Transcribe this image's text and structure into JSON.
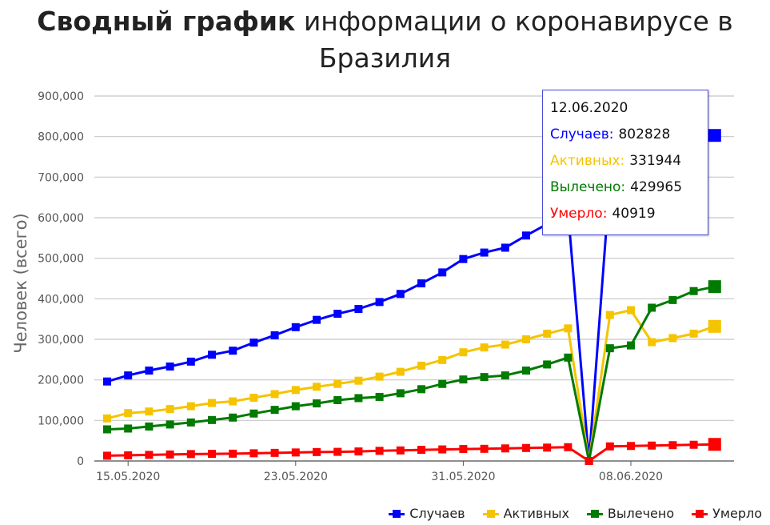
{
  "title": {
    "bold": "Сводный график",
    "rest": " информации о коронавирусе в Бразилия"
  },
  "tooltip": {
    "date": "12.06.2020",
    "rows": [
      {
        "label": "Случаев:",
        "value": "802828",
        "color": "#0000ff"
      },
      {
        "label": "Активных:",
        "value": "331944",
        "color": "#f5c400"
      },
      {
        "label": "Вылечено:",
        "value": "429965",
        "color": "#007a00"
      },
      {
        "label": "Умерло:",
        "value": "40919",
        "color": "#ff0000"
      }
    ]
  },
  "chart_data": {
    "type": "line",
    "ylabel": "Человек (всего)",
    "xlabel": "",
    "ylim": [
      0,
      900000
    ],
    "yticks": [
      "900,000",
      "800,000",
      "700,000",
      "600,000",
      "500,000",
      "400,000",
      "300,000",
      "200,000",
      "100,000",
      "0"
    ],
    "ytick_values": [
      900000,
      800000,
      700000,
      600000,
      500000,
      400000,
      300000,
      200000,
      100000,
      0
    ],
    "xticks": [
      {
        "label": "15.05.2020",
        "index": 1
      },
      {
        "label": "23.05.2020",
        "index": 9
      },
      {
        "label": "31.05.2020",
        "index": 17
      },
      {
        "label": "08.06.2020",
        "index": 25
      }
    ],
    "x": [
      "14.05.2020",
      "15.05.2020",
      "16.05.2020",
      "17.05.2020",
      "18.05.2020",
      "19.05.2020",
      "20.05.2020",
      "21.05.2020",
      "22.05.2020",
      "23.05.2020",
      "24.05.2020",
      "25.05.2020",
      "26.05.2020",
      "27.05.2020",
      "28.05.2020",
      "29.05.2020",
      "30.05.2020",
      "31.05.2020",
      "01.06.2020",
      "02.06.2020",
      "03.06.2020",
      "04.06.2020",
      "05.06.2020",
      "06.06.2020",
      "07.06.2020",
      "08.06.2020",
      "09.06.2020",
      "10.06.2020",
      "11.06.2020",
      "12.06.2020"
    ],
    "grid": true,
    "legend_position": "bottom-right",
    "series": [
      {
        "name": "Случаев",
        "color": "#0000ff",
        "values": [
          196000,
          211000,
          223000,
          233000,
          245000,
          262000,
          272000,
          292000,
          310000,
          330000,
          348000,
          363000,
          375000,
          392000,
          412000,
          438000,
          465000,
          498000,
          514000,
          526000,
          556000,
          584000,
          615000,
          0,
          691000,
          708000,
          739000,
          772000,
          802828,
          802828
        ]
      },
      {
        "name": "Активных",
        "color": "#f5c400",
        "values": [
          105000,
          118000,
          122000,
          128000,
          135000,
          143000,
          147000,
          156000,
          165000,
          175000,
          183000,
          190000,
          198000,
          208000,
          220000,
          235000,
          249000,
          268000,
          280000,
          287000,
          300000,
          314000,
          327000,
          0,
          360000,
          372000,
          293000,
          303000,
          314000,
          331944
        ]
      },
      {
        "name": "Вылечено",
        "color": "#007a00",
        "values": [
          78000,
          80000,
          85000,
          90000,
          95000,
          101000,
          107000,
          117000,
          126000,
          135000,
          142000,
          150000,
          155000,
          158000,
          167000,
          177000,
          190000,
          201000,
          207000,
          211000,
          223000,
          238000,
          255000,
          0,
          278000,
          285000,
          378000,
          397000,
          419000,
          429965
        ]
      },
      {
        "name": "Умерло",
        "color": "#ff0000",
        "values": [
          13000,
          14000,
          15000,
          16000,
          17000,
          17500,
          18000,
          19000,
          20000,
          21000,
          22000,
          22500,
          23500,
          25000,
          26000,
          27500,
          28500,
          29500,
          30000,
          31000,
          32000,
          33000,
          34000,
          0,
          36000,
          37000,
          38000,
          39000,
          40000,
          40919
        ]
      }
    ]
  }
}
